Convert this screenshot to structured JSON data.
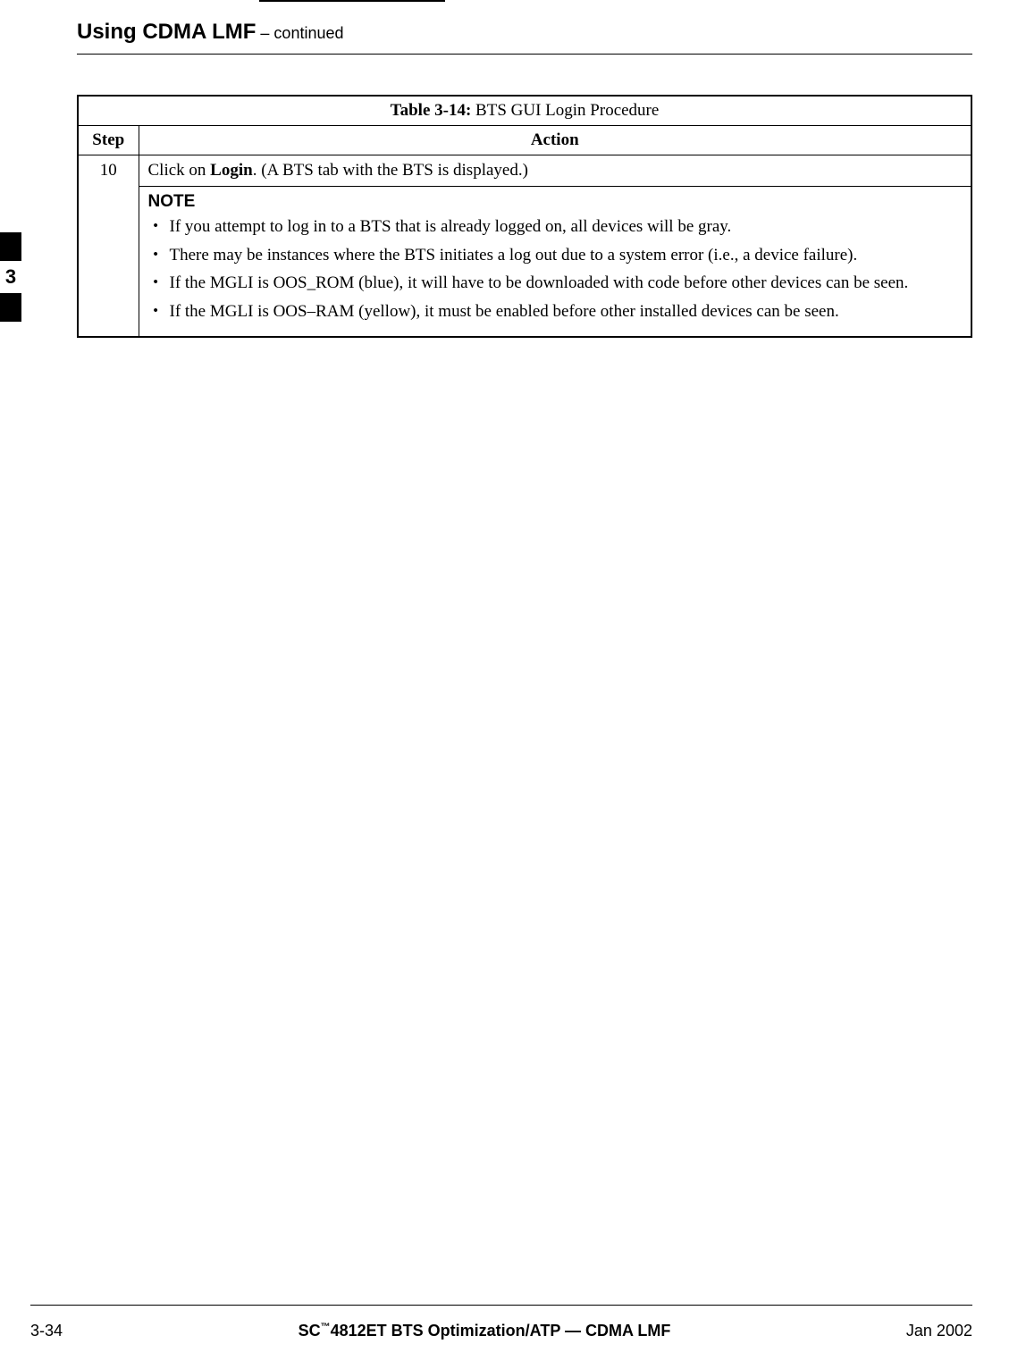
{
  "header": {
    "title": "Using CDMA LMF",
    "continued": "  – continued"
  },
  "sideTab": {
    "chapter": "3"
  },
  "table": {
    "captionPrefix": "Table 3-14: ",
    "captionText": "BTS GUI Login Procedure",
    "headers": {
      "step": "Step",
      "action": "Action"
    },
    "row1": {
      "step": "10",
      "actionPrefix": "Click on ",
      "actionBold": "Login",
      "actionSuffix": ". (A BTS tab with the BTS is displayed.)"
    },
    "note": {
      "label": "NOTE",
      "bullets": [
        "If you attempt to log in to a BTS that is already logged on, all devices will be gray.",
        "There may be instances where the BTS initiates a log out due to a system error (i.e., a device failure).",
        "If the MGLI is OOS_ROM (blue), it will have to be downloaded with code before other devices can be seen.",
        "If the MGLI is OOS–RAM (yellow), it must be enabled before other installed devices can be seen."
      ]
    }
  },
  "footer": {
    "page": "3-34",
    "midPrefix": "SC",
    "midTM": "™",
    "midSuffix": "4812ET BTS Optimization/ATP — CDMA LMF",
    "date": "Jan 2002"
  }
}
